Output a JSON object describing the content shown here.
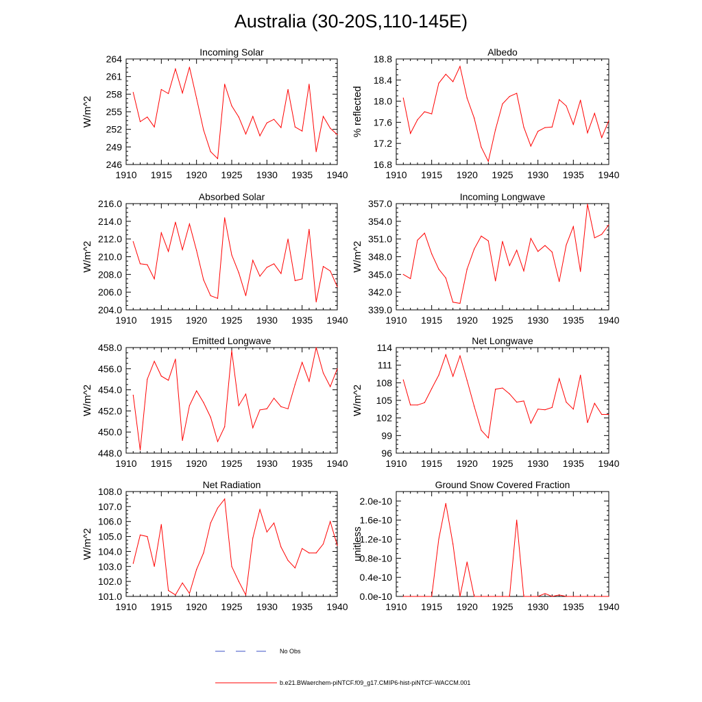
{
  "page_title": "Australia (30-20S,110-145E)",
  "legend": [
    {
      "label": "No Obs",
      "color": "#3b4fc4",
      "dash": true
    },
    {
      "label": "b.e21.BWaerchem-piNTCF.f09_g17.CMIP6-hist-piNTCF-WACCM.001",
      "color": "#ff0000",
      "dash": false
    }
  ],
  "chart_data": [
    {
      "type": "line",
      "title": "Incoming Solar",
      "ylabel": "W/m^2",
      "xlim": [
        1910,
        1940
      ],
      "ylim": [
        246,
        264
      ],
      "xticks": [
        1910,
        1915,
        1920,
        1925,
        1930,
        1935,
        1940
      ],
      "yticks": [
        "246",
        "249",
        "252",
        "255",
        "258",
        "261",
        "264"
      ],
      "color": "#ff0000",
      "x": [
        1911,
        1912,
        1913,
        1914,
        1915,
        1916,
        1917,
        1918,
        1919,
        1920,
        1921,
        1922,
        1923,
        1924,
        1925,
        1926,
        1927,
        1928,
        1929,
        1930,
        1931,
        1932,
        1933,
        1934,
        1935,
        1936,
        1937,
        1938,
        1939,
        1940
      ],
      "y": [
        258.3,
        253.3,
        254.1,
        252.4,
        258.8,
        258.1,
        262.3,
        258.2,
        262.6,
        257.3,
        251.9,
        248.2,
        247.0,
        259.7,
        256.0,
        254.1,
        251.2,
        254.2,
        250.9,
        253.1,
        253.7,
        252.3,
        258.8,
        252.4,
        251.7,
        259.7,
        248.2,
        254.2,
        252.2,
        251.1
      ]
    },
    {
      "type": "line",
      "title": "Albedo",
      "ylabel": "% reflected",
      "xlim": [
        1910,
        1940
      ],
      "ylim": [
        16.8,
        18.8
      ],
      "xticks": [
        1910,
        1915,
        1920,
        1925,
        1930,
        1935,
        1940
      ],
      "yticks": [
        "16.8",
        "17.2",
        "17.6",
        "18.0",
        "18.4",
        "18.8"
      ],
      "color": "#ff0000",
      "x": [
        1911,
        1912,
        1913,
        1914,
        1915,
        1916,
        1917,
        1918,
        1919,
        1920,
        1921,
        1922,
        1923,
        1924,
        1925,
        1926,
        1927,
        1928,
        1929,
        1930,
        1931,
        1932,
        1933,
        1934,
        1935,
        1936,
        1937,
        1938,
        1939,
        1940
      ],
      "y": [
        18.06,
        17.39,
        17.65,
        17.8,
        17.76,
        18.34,
        18.51,
        18.37,
        18.66,
        18.06,
        17.68,
        17.13,
        16.86,
        17.46,
        17.95,
        18.09,
        18.15,
        17.51,
        17.15,
        17.43,
        17.5,
        17.51,
        18.03,
        17.91,
        17.56,
        18.02,
        17.4,
        17.77,
        17.31,
        17.63
      ]
    },
    {
      "type": "line",
      "title": "Absorbed Solar",
      "ylabel": "W/m^2",
      "xlim": [
        1910,
        1940
      ],
      "ylim": [
        204.0,
        216.0
      ],
      "xticks": [
        1910,
        1915,
        1920,
        1925,
        1930,
        1935,
        1940
      ],
      "yticks": [
        "204.0",
        "206.0",
        "208.0",
        "210.0",
        "212.0",
        "214.0",
        "216.0"
      ],
      "color": "#ff0000",
      "x": [
        1911,
        1912,
        1913,
        1914,
        1915,
        1916,
        1917,
        1918,
        1919,
        1920,
        1921,
        1922,
        1923,
        1924,
        1925,
        1926,
        1927,
        1928,
        1929,
        1930,
        1931,
        1932,
        1933,
        1934,
        1935,
        1936,
        1937,
        1938,
        1939,
        1940
      ],
      "y": [
        211.7,
        209.2,
        209.1,
        207.5,
        212.7,
        210.6,
        213.9,
        210.8,
        213.7,
        210.7,
        207.4,
        205.6,
        205.3,
        214.4,
        210.2,
        208.2,
        205.6,
        209.6,
        207.8,
        208.8,
        209.2,
        208.1,
        212.0,
        207.3,
        207.5,
        213.1,
        204.9,
        208.9,
        208.4,
        206.6
      ]
    },
    {
      "type": "line",
      "title": "Incoming Longwave",
      "ylabel": "W/m^2",
      "xlim": [
        1910,
        1940
      ],
      "ylim": [
        339.0,
        357.0
      ],
      "xticks": [
        1910,
        1915,
        1920,
        1925,
        1930,
        1935,
        1940
      ],
      "yticks": [
        "339.0",
        "342.0",
        "345.0",
        "348.0",
        "351.0",
        "354.0",
        "357.0"
      ],
      "color": "#ff0000",
      "x": [
        1911,
        1912,
        1913,
        1914,
        1915,
        1916,
        1917,
        1918,
        1919,
        1920,
        1921,
        1922,
        1923,
        1924,
        1925,
        1926,
        1927,
        1928,
        1929,
        1930,
        1931,
        1932,
        1933,
        1934,
        1935,
        1936,
        1937,
        1938,
        1939,
        1940
      ],
      "y": [
        345.0,
        344.3,
        350.8,
        352.0,
        348.5,
        345.9,
        344.4,
        340.3,
        340.1,
        345.9,
        349.3,
        351.5,
        350.7,
        343.9,
        350.6,
        346.5,
        349.1,
        345.6,
        351.1,
        348.9,
        349.9,
        348.8,
        343.8,
        350.0,
        353.1,
        345.5,
        356.9,
        351.2,
        351.8,
        353.4
      ]
    },
    {
      "type": "line",
      "title": "Emitted Longwave",
      "ylabel": "W/m^2",
      "xlim": [
        1910,
        1940
      ],
      "ylim": [
        448.0,
        458.0
      ],
      "xticks": [
        1910,
        1915,
        1920,
        1925,
        1930,
        1935,
        1940
      ],
      "yticks": [
        "448.0",
        "450.0",
        "452.0",
        "454.0",
        "456.0",
        "458.0"
      ],
      "color": "#ff0000",
      "x": [
        1911,
        1912,
        1913,
        1914,
        1915,
        1916,
        1917,
        1918,
        1919,
        1920,
        1921,
        1922,
        1923,
        1924,
        1925,
        1926,
        1927,
        1928,
        1929,
        1930,
        1931,
        1932,
        1933,
        1934,
        1935,
        1936,
        1937,
        1938,
        1939,
        1940
      ],
      "y": [
        453.5,
        448.3,
        455.0,
        456.7,
        455.3,
        454.9,
        456.9,
        449.2,
        452.5,
        453.9,
        452.8,
        451.4,
        449.1,
        450.5,
        457.7,
        452.5,
        453.6,
        450.4,
        452.1,
        452.2,
        453.2,
        452.4,
        452.2,
        454.5,
        456.6,
        454.8,
        458.0,
        455.6,
        454.3,
        456.0
      ]
    },
    {
      "type": "line",
      "title": "Net Longwave",
      "ylabel": "W/m^2",
      "xlim": [
        1910,
        1940
      ],
      "ylim": [
        96,
        114
      ],
      "xticks": [
        1910,
        1915,
        1920,
        1925,
        1930,
        1935,
        1940
      ],
      "yticks": [
        "96",
        "99",
        "102",
        "105",
        "108",
        "111",
        "114"
      ],
      "color": "#ff0000",
      "x": [
        1911,
        1912,
        1913,
        1914,
        1915,
        1916,
        1917,
        1918,
        1919,
        1920,
        1921,
        1922,
        1923,
        1924,
        1925,
        1926,
        1927,
        1928,
        1929,
        1930,
        1931,
        1932,
        1933,
        1934,
        1935,
        1936,
        1937,
        1938,
        1939,
        1940
      ],
      "y": [
        108.5,
        104.2,
        104.2,
        104.6,
        107.0,
        109.3,
        112.8,
        109.1,
        112.6,
        108.4,
        104.0,
        99.9,
        98.6,
        106.9,
        107.1,
        106.1,
        104.7,
        104.9,
        101.1,
        103.5,
        103.4,
        103.8,
        108.7,
        104.7,
        103.5,
        109.3,
        101.2,
        104.5,
        102.6,
        102.6
      ]
    },
    {
      "type": "line",
      "title": "Net Radiation",
      "ylabel": "W/m^2",
      "xlim": [
        1910,
        1940
      ],
      "ylim": [
        101.0,
        108.0
      ],
      "xticks": [
        1910,
        1915,
        1920,
        1925,
        1930,
        1935,
        1940
      ],
      "yticks": [
        "101.0",
        "102.0",
        "103.0",
        "104.0",
        "105.0",
        "106.0",
        "107.0",
        "108.0"
      ],
      "color": "#ff0000",
      "x": [
        1911,
        1912,
        1913,
        1914,
        1915,
        1916,
        1917,
        1918,
        1919,
        1920,
        1921,
        1922,
        1923,
        1924,
        1925,
        1926,
        1927,
        1928,
        1929,
        1930,
        1931,
        1932,
        1933,
        1934,
        1935,
        1936,
        1937,
        1938,
        1939,
        1940
      ],
      "y": [
        103.2,
        105.1,
        105.0,
        103.0,
        105.8,
        101.4,
        101.1,
        101.9,
        101.2,
        102.8,
        103.9,
        105.9,
        106.9,
        107.5,
        103.0,
        102.0,
        101.1,
        104.9,
        106.8,
        105.3,
        105.9,
        104.3,
        103.4,
        102.9,
        104.2,
        103.9,
        103.9,
        104.5,
        106.0,
        104.4
      ]
    },
    {
      "type": "line",
      "title": "Ground Snow Covered Fraction",
      "ylabel": "unitless",
      "xlim": [
        1910,
        1940
      ],
      "ylim": [
        0,
        2.2e-10
      ],
      "xticks": [
        1910,
        1915,
        1920,
        1925,
        1930,
        1935,
        1940
      ],
      "yticks": [
        "0.0e-10",
        "0.4e-10",
        "0.8e-10",
        "1.2e-10",
        "1.6e-10",
        "2.0e-10"
      ],
      "ytick_values": [
        0,
        4e-11,
        8e-11,
        1.2e-10,
        1.6e-10,
        2e-10
      ],
      "color": "#ff0000",
      "x": [
        1911,
        1912,
        1913,
        1914,
        1915,
        1916,
        1917,
        1918,
        1919,
        1920,
        1921,
        1922,
        1923,
        1924,
        1925,
        1926,
        1927,
        1928,
        1929,
        1930,
        1931,
        1932,
        1933,
        1934,
        1935,
        1936,
        1937,
        1938,
        1939,
        1940
      ],
      "y": [
        0,
        0,
        0,
        0,
        0,
        1.2e-10,
        1.95e-10,
        1.1e-10,
        0,
        7.2e-11,
        0,
        0,
        0,
        0,
        0,
        0,
        1.6e-10,
        0,
        0,
        0,
        6e-12,
        0,
        3e-12,
        0,
        0,
        0,
        0,
        0,
        0,
        0
      ]
    }
  ]
}
